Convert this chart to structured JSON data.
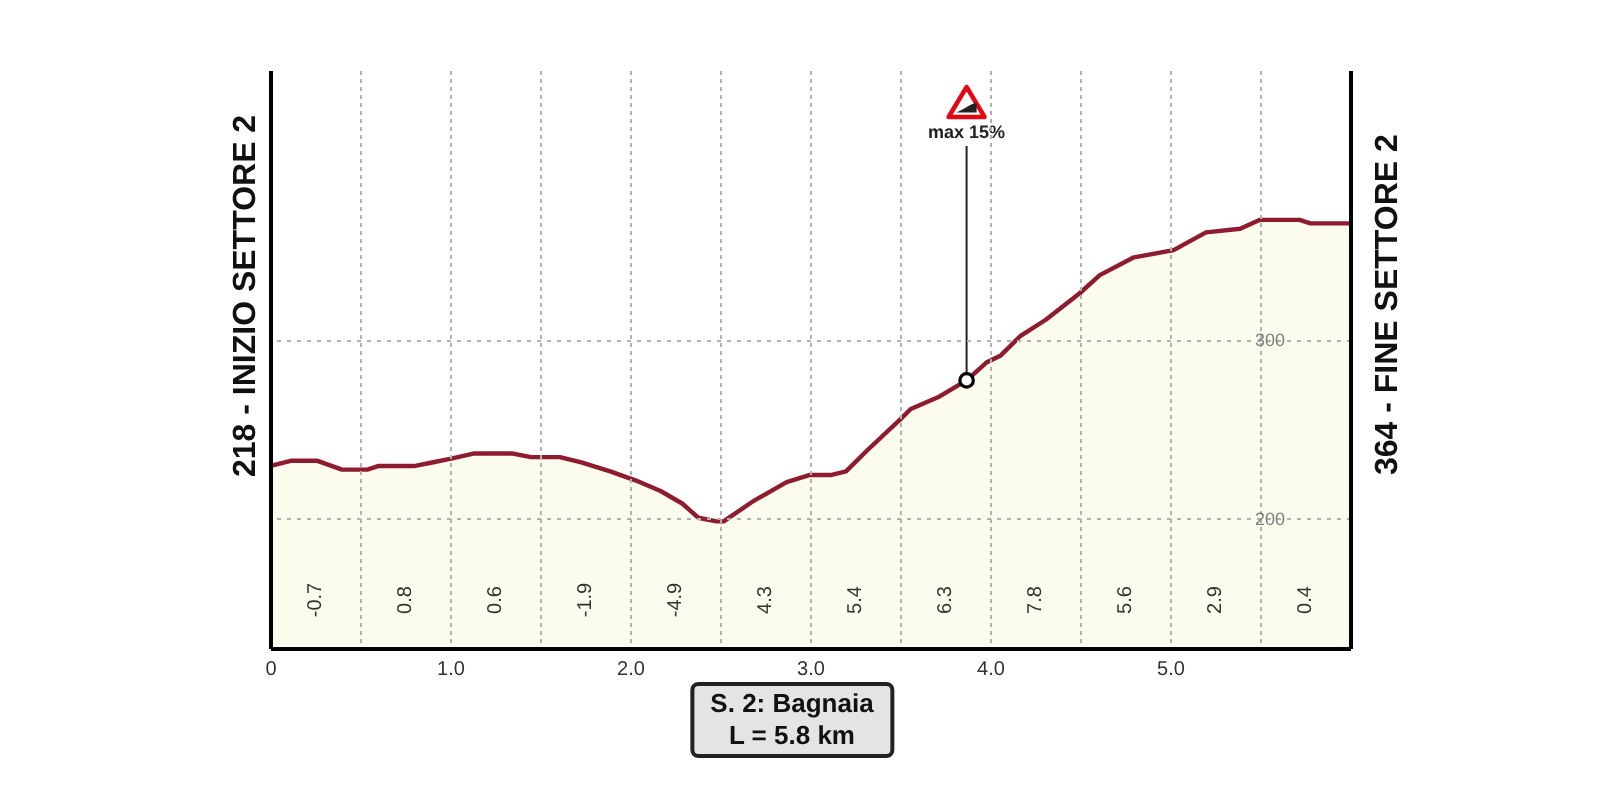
{
  "chart_data": {
    "type": "area",
    "ylabel": "218 - INIZIO SETTORE 2",
    "y2label": "364 - FINE SETTORE 2",
    "x": [
      0,
      0.12,
      0.26,
      0.4,
      0.54,
      0.6,
      0.8,
      0.9,
      1.0,
      1.13,
      1.35,
      1.45,
      1.61,
      1.73,
      1.89,
      2.03,
      2.17,
      2.29,
      2.38,
      2.48,
      2.52,
      2.68,
      2.87,
      3.0,
      3.12,
      3.2,
      3.32,
      3.5,
      3.56,
      3.72,
      3.87,
      3.98,
      4.06,
      4.17,
      4.31,
      4.5,
      4.61,
      4.8,
      5.02,
      5.2,
      5.39,
      5.5,
      5.72,
      5.78,
      6.0
    ],
    "values": [
      229,
      232,
      232,
      227,
      227,
      229,
      229,
      231,
      233,
      236,
      236,
      234,
      234,
      231,
      226,
      221,
      215,
      208,
      200,
      198,
      198,
      209,
      220,
      224,
      224,
      226,
      238,
      255,
      261,
      268,
      277,
      287,
      291,
      302,
      311,
      326,
      336,
      346,
      350,
      360,
      362,
      367,
      367,
      365,
      365
    ],
    "color": "#8e1b2e",
    "xlim": [
      0,
      6
    ],
    "xticks": [
      0,
      {
        "value": 0.5,
        "label": null
      },
      {
        "value": 1,
        "label": "1.0"
      },
      {
        "value": 1.5,
        "label": null
      },
      {
        "value": 2,
        "label": "2.0"
      },
      {
        "value": 2.5,
        "label": null
      },
      {
        "value": 3,
        "label": "3.0"
      },
      {
        "value": 3.5,
        "label": null
      },
      {
        "value": 4,
        "label": "4.0"
      },
      {
        "value": 4.5,
        "label": null
      },
      {
        "value": 5,
        "label": "5.0"
      },
      {
        "value": 5.5,
        "label": null
      }
    ],
    "ylim": [
      127,
      451
    ],
    "yticks": [
      200,
      300
    ],
    "grid": true,
    "annotations": [
      {
        "text": "max 15%",
        "x": 3.87,
        "y": 277
      },
      "-0.7",
      "0.8",
      "0.6",
      "-1.9",
      "-4.9",
      "4.3",
      "5.4",
      "6.3",
      "7.8",
      "5.6",
      "2.9",
      "0.4",
      "S. 2: Bagnaia",
      "L = 5.8 km"
    ]
  }
}
